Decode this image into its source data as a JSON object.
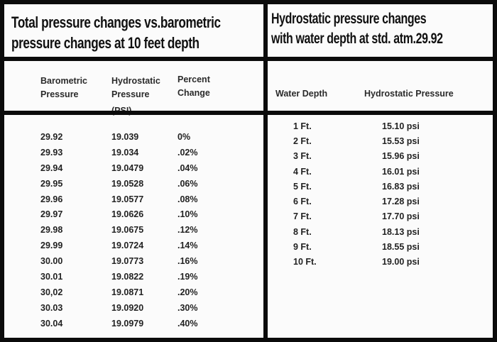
{
  "left_panel": {
    "title_lines": [
      "Total pressure changes vs.barometric",
      "pressure changes at 10 feet depth"
    ],
    "headers": {
      "barometric": "Barometric Pressure",
      "hydrostatic": "Hydrostatic Pressure",
      "hydrostatic_unit": "(PSI)",
      "percent": "Percent Change"
    },
    "rows": [
      {
        "barometric": "29.92",
        "hydrostatic": "19.039",
        "percent": "0%"
      },
      {
        "barometric": "29.93",
        "hydrostatic": "19.034",
        "percent": ".02%"
      },
      {
        "barometric": "29.94",
        "hydrostatic": "19.0479",
        "percent": ".04%"
      },
      {
        "barometric": "29.95",
        "hydrostatic": "19.0528",
        "percent": ".06%"
      },
      {
        "barometric": "29.96",
        "hydrostatic": "19.0577",
        "percent": ".08%"
      },
      {
        "barometric": "29.97",
        "hydrostatic": "19.0626",
        "percent": ".10%"
      },
      {
        "barometric": "29.98",
        "hydrostatic": "19.0675",
        "percent": ".12%"
      },
      {
        "barometric": "29.99",
        "hydrostatic": "19.0724",
        "percent": ".14%"
      },
      {
        "barometric": "30.00",
        "hydrostatic": "19.0773",
        "percent": ".16%"
      },
      {
        "barometric": "30.01",
        "hydrostatic": "19.0822",
        "percent": ".19%"
      },
      {
        "barometric": "30,02",
        "hydrostatic": "19.0871",
        "percent": ".20%"
      },
      {
        "barometric": "30.03",
        "hydrostatic": "19.0920",
        "percent": ".30%"
      },
      {
        "barometric": "30.04",
        "hydrostatic": "19.0979",
        "percent": ".40%"
      }
    ]
  },
  "right_panel": {
    "title_lines": [
      "Hydrostatic pressure changes",
      "with water depth at std. atm.29.92"
    ],
    "headers": {
      "depth": "Water Depth",
      "pressure": "Hydrostatic Pressure"
    },
    "rows": [
      {
        "depth": "1 Ft.",
        "pressure": "15.10 psi"
      },
      {
        "depth": "2 Ft.",
        "pressure": "15.53 psi"
      },
      {
        "depth": "3 Ft.",
        "pressure": "15.96 psi"
      },
      {
        "depth": "4 Ft.",
        "pressure": "16.01 psi"
      },
      {
        "depth": "5 Ft.",
        "pressure": "16.83 psi"
      },
      {
        "depth": "6 Ft.",
        "pressure": "17.28 psi"
      },
      {
        "depth": "7 Ft.",
        "pressure": "17.70 psi"
      },
      {
        "depth": "8 Ft.",
        "pressure": "18.13 psi"
      },
      {
        "depth": "9 Ft.",
        "pressure": "18.55 psi"
      },
      {
        "depth": "10 Ft.",
        "pressure": "19.00 psi"
      }
    ]
  },
  "colors": {
    "border": "#0b0b0b",
    "text": "#1d1d1d",
    "background": "#fbfbfb"
  }
}
